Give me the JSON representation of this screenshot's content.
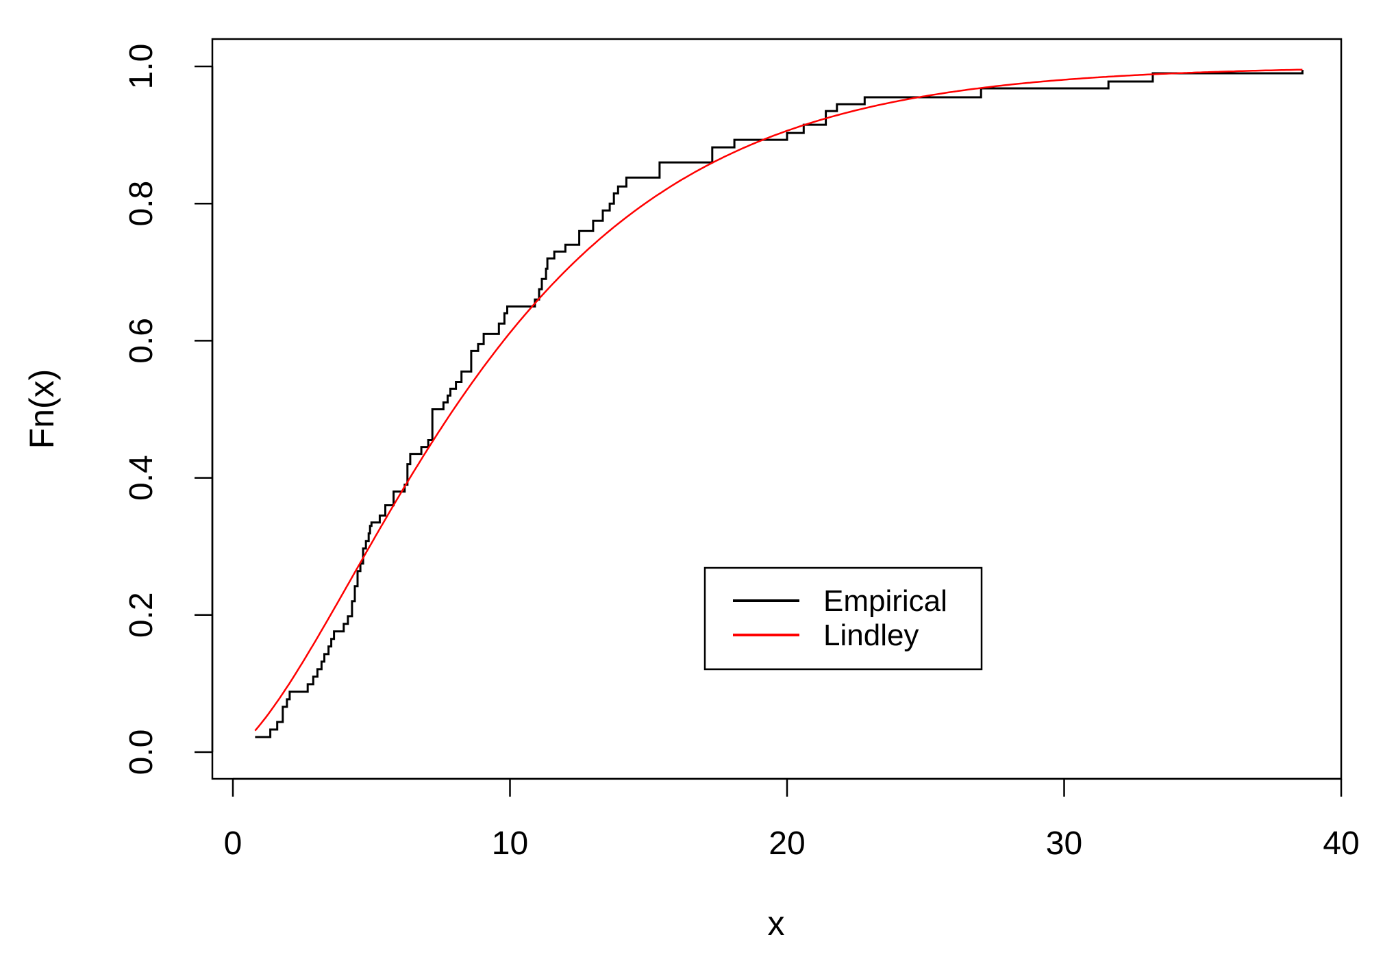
{
  "chart_data": {
    "type": "line",
    "title": "",
    "xlabel": "x",
    "ylabel": "Fn(x)",
    "xlim": [
      0,
      40
    ],
    "ylim": [
      0,
      1
    ],
    "x_ticks": [
      "0",
      "10",
      "20",
      "30",
      "40"
    ],
    "y_ticks": [
      "0.0",
      "0.2",
      "0.4",
      "0.6",
      "0.8",
      "1.0"
    ],
    "grid": false,
    "legend_position": "bottom-center",
    "series": [
      {
        "name": "Empirical",
        "kind": "step",
        "color": "#000000",
        "points": [
          [
            0.8,
            0.022
          ],
          [
            1.3,
            0.022
          ],
          [
            1.35,
            0.033
          ],
          [
            1.6,
            0.044
          ],
          [
            1.8,
            0.066
          ],
          [
            1.95,
            0.077
          ],
          [
            2.05,
            0.088
          ],
          [
            2.55,
            0.088
          ],
          [
            2.7,
            0.099
          ],
          [
            2.9,
            0.11
          ],
          [
            3.05,
            0.121
          ],
          [
            3.2,
            0.132
          ],
          [
            3.3,
            0.143
          ],
          [
            3.45,
            0.154
          ],
          [
            3.55,
            0.165
          ],
          [
            3.65,
            0.176
          ],
          [
            4.0,
            0.187
          ],
          [
            4.15,
            0.198
          ],
          [
            4.3,
            0.22
          ],
          [
            4.4,
            0.242
          ],
          [
            4.5,
            0.264
          ],
          [
            4.6,
            0.275
          ],
          [
            4.7,
            0.297
          ],
          [
            4.8,
            0.308
          ],
          [
            4.9,
            0.319
          ],
          [
            4.95,
            0.33
          ],
          [
            5.0,
            0.335
          ],
          [
            5.3,
            0.345
          ],
          [
            5.5,
            0.36
          ],
          [
            5.8,
            0.38
          ],
          [
            6.2,
            0.39
          ],
          [
            6.3,
            0.42
          ],
          [
            6.4,
            0.435
          ],
          [
            6.8,
            0.445
          ],
          [
            7.05,
            0.455
          ],
          [
            7.2,
            0.5
          ],
          [
            7.6,
            0.51
          ],
          [
            7.75,
            0.52
          ],
          [
            7.85,
            0.53
          ],
          [
            8.05,
            0.54
          ],
          [
            8.25,
            0.555
          ],
          [
            8.6,
            0.585
          ],
          [
            8.85,
            0.595
          ],
          [
            9.05,
            0.61
          ],
          [
            9.6,
            0.625
          ],
          [
            9.8,
            0.64
          ],
          [
            9.9,
            0.65
          ],
          [
            10.9,
            0.66
          ],
          [
            11.05,
            0.675
          ],
          [
            11.15,
            0.69
          ],
          [
            11.3,
            0.705
          ],
          [
            11.35,
            0.72
          ],
          [
            11.6,
            0.73
          ],
          [
            12.0,
            0.74
          ],
          [
            12.5,
            0.76
          ],
          [
            13.0,
            0.775
          ],
          [
            13.35,
            0.79
          ],
          [
            13.6,
            0.8
          ],
          [
            13.75,
            0.815
          ],
          [
            13.9,
            0.825
          ],
          [
            14.2,
            0.838
          ],
          [
            15.4,
            0.86
          ],
          [
            17.3,
            0.882
          ],
          [
            18.1,
            0.893
          ],
          [
            20.0,
            0.903
          ],
          [
            20.6,
            0.915
          ],
          [
            21.4,
            0.935
          ],
          [
            21.8,
            0.945
          ],
          [
            22.8,
            0.955
          ],
          [
            27.0,
            0.968
          ],
          [
            31.6,
            0.978
          ],
          [
            33.2,
            0.99
          ],
          [
            35.0,
            0.99
          ],
          [
            38.6,
            0.995
          ]
        ]
      },
      {
        "name": "Lindley",
        "kind": "cdf",
        "color": "#ff0000",
        "theta": 0.19
      }
    ]
  }
}
